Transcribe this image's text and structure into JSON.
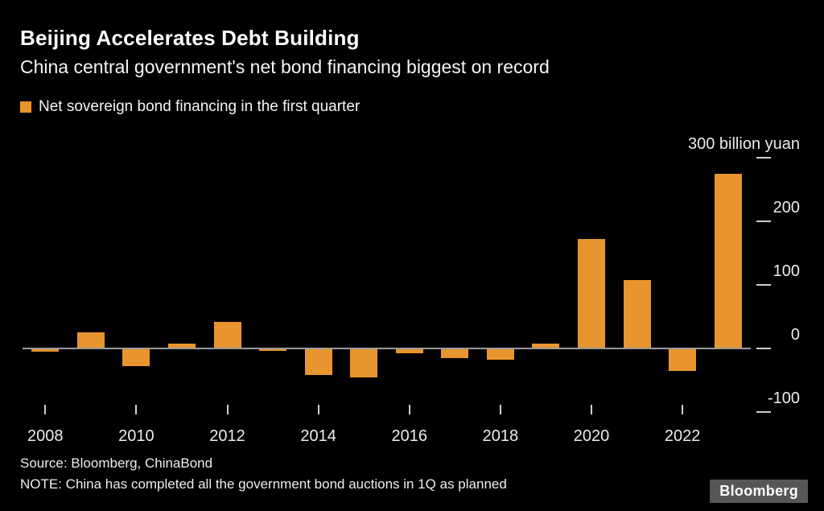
{
  "header": {
    "title": "Beijing Accelerates Debt Building",
    "subtitle": "China central government's net bond financing biggest on record"
  },
  "chart_data": {
    "type": "bar",
    "title": "Beijing Accelerates Debt Building",
    "subtitle": "China central government's net bond financing biggest on record",
    "legend": "Net sovereign bond financing in the first quarter",
    "categories": [
      "2008",
      "2009",
      "2010",
      "2011",
      "2012",
      "2013",
      "2014",
      "2015",
      "2016",
      "2017",
      "2018",
      "2019",
      "2020",
      "2021",
      "2022",
      "2023"
    ],
    "values": [
      -5,
      25,
      -28,
      7,
      42,
      -4,
      -42,
      -45,
      -8,
      -15,
      -18,
      7,
      172,
      107,
      -35,
      275
    ],
    "unit": "billion yuan",
    "y_ticks": [
      300,
      200,
      100,
      0,
      -100
    ],
    "y_top_label": "300 billion yuan",
    "x_tick_labels": [
      "2008",
      "2010",
      "2012",
      "2014",
      "2016",
      "2018",
      "2020",
      "2022"
    ],
    "ylim": [
      -130,
      310
    ],
    "bar_color": "#E8952F",
    "grid": false,
    "legend_position": "top-left"
  },
  "footer": {
    "source": "Source: Bloomberg, ChinaBond",
    "note": "NOTE: China has completed all the government bond auctions in 1Q as planned",
    "logo": "Bloomberg"
  },
  "colors": {
    "background": "#000000",
    "bar": "#E8952F",
    "axis": "#9a9a9a",
    "text": "#f2f2f2"
  }
}
